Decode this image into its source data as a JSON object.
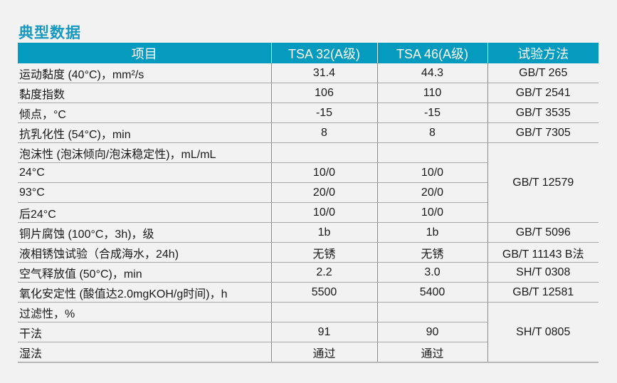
{
  "title": "典型数据",
  "header": [
    "项目",
    "TSA 32(A级)",
    "TSA 46(A级)",
    "试验方法"
  ],
  "rows": [
    {
      "item": "运动黏度 (40°C)，mm²/s",
      "tsa32": "31.4",
      "tsa46": "44.3",
      "method": "GB/T 265"
    },
    {
      "item": "黏度指数",
      "tsa32": "106",
      "tsa46": "110",
      "method": "GB/T 2541"
    },
    {
      "item": "倾点，°C",
      "tsa32": "-15",
      "tsa46": "-15",
      "method": "GB/T 3535"
    },
    {
      "item": "抗乳化性 (54°C)，min",
      "tsa32": "8",
      "tsa46": "8",
      "method": "GB/T 7305"
    },
    {
      "item": "泡沫性 (泡沫倾向/泡沫稳定性)，mL/mL",
      "tsa32": "",
      "tsa46": "",
      "method": "GB/T 12579",
      "rowspan": 4
    },
    {
      "item": "24°C",
      "tsa32": "10/0",
      "tsa46": "10/0"
    },
    {
      "item": "93°C",
      "tsa32": "20/0",
      "tsa46": "20/0"
    },
    {
      "item": "后24°C",
      "tsa32": "10/0",
      "tsa46": "10/0"
    },
    {
      "item": "铜片腐蚀 (100°C，3h)，级",
      "tsa32": "1b",
      "tsa46": "1b",
      "method": "GB/T 5096"
    },
    {
      "item": "液相锈蚀试验（合成海水，24h)",
      "tsa32": "无锈",
      "tsa46": "无锈",
      "method": "GB/T 11143 B法"
    },
    {
      "item": "空气释放值 (50°C)，min",
      "tsa32": "2.2",
      "tsa46": "3.0",
      "method": "SH/T 0308"
    },
    {
      "item": "氧化安定性 (酸值达2.0mgKOH/g时间)，h",
      "tsa32": "5500",
      "tsa46": "5400",
      "method": "GB/T 12581"
    },
    {
      "item": "过滤性，%",
      "tsa32": "",
      "tsa46": "",
      "method": "SH/T 0805",
      "rowspan": 3
    },
    {
      "item": "干法",
      "tsa32": "91",
      "tsa46": "90"
    },
    {
      "item": "湿法",
      "tsa32": "通过",
      "tsa46": "通过"
    }
  ]
}
